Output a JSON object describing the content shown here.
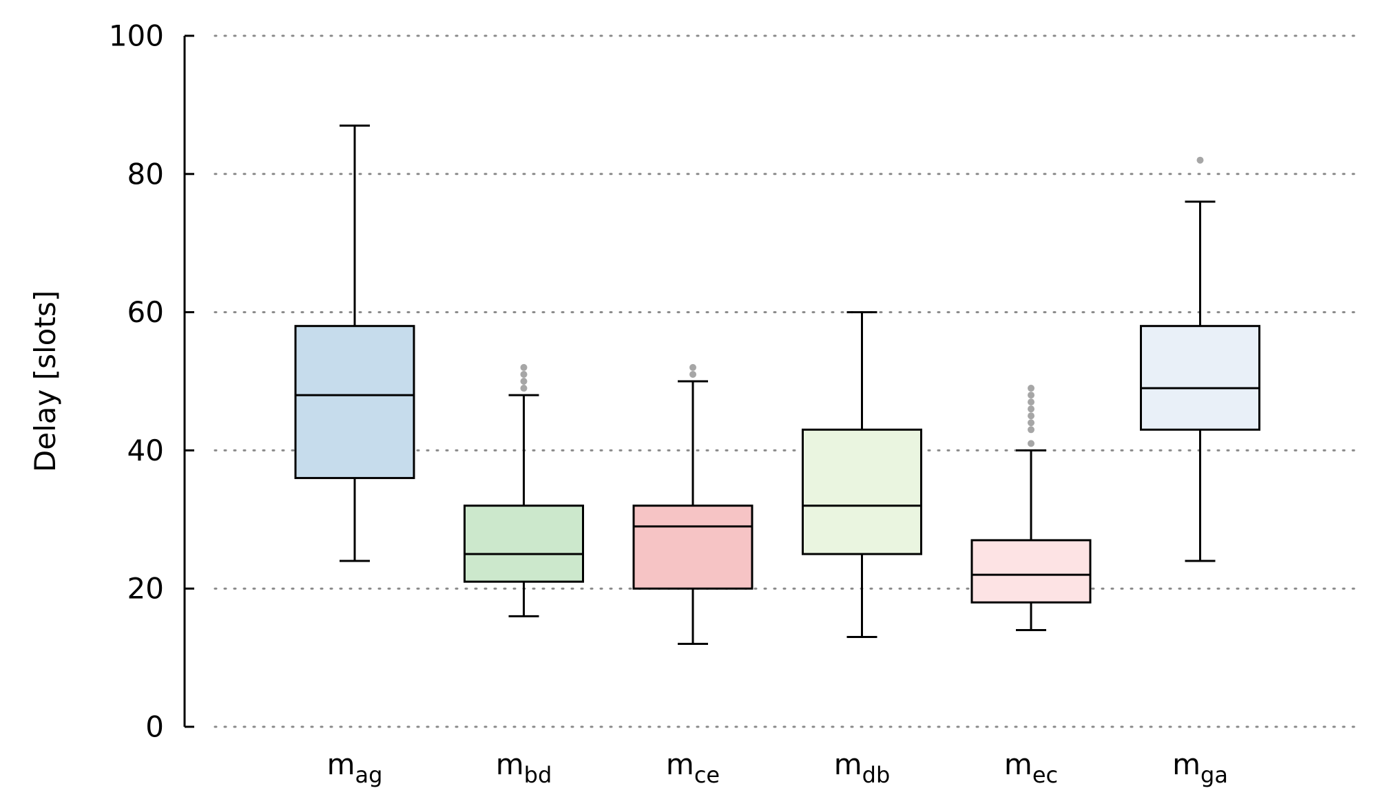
{
  "chart_data": {
    "type": "boxplot",
    "title": "",
    "xlabel": "",
    "ylabel": "Delay [slots]",
    "ylim": [
      0,
      100
    ],
    "yticks": [
      0,
      20,
      40,
      60,
      80,
      100
    ],
    "grid": true,
    "categories": [
      {
        "main": "m",
        "sub": "ag"
      },
      {
        "main": "m",
        "sub": "bd"
      },
      {
        "main": "m",
        "sub": "ce"
      },
      {
        "main": "m",
        "sub": "db"
      },
      {
        "main": "m",
        "sub": "ec"
      },
      {
        "main": "m",
        "sub": "ga"
      }
    ],
    "boxes": [
      {
        "name": "m_ag",
        "whisker_low": 24,
        "q1": 36,
        "median": 48,
        "q3": 58,
        "whisker_high": 87,
        "outliers": [],
        "color": "#c6dcec"
      },
      {
        "name": "m_bd",
        "whisker_low": 16,
        "q1": 21,
        "median": 25,
        "q3": 32,
        "whisker_high": 48,
        "outliers": [
          49,
          50,
          51,
          52
        ],
        "color": "#cce8cc"
      },
      {
        "name": "m_ce",
        "whisker_low": 12,
        "q1": 20,
        "median": 29,
        "q3": 32,
        "whisker_high": 50,
        "outliers": [
          51,
          52
        ],
        "color": "#f6c4c5"
      },
      {
        "name": "m_db",
        "whisker_low": 13,
        "q1": 25,
        "median": 32,
        "q3": 43,
        "whisker_high": 60,
        "outliers": [],
        "color": "#eaf5e0"
      },
      {
        "name": "m_ec",
        "whisker_low": 14,
        "q1": 18,
        "median": 22,
        "q3": 27,
        "whisker_high": 40,
        "outliers": [
          41,
          43,
          44,
          45,
          46,
          47,
          48,
          49
        ],
        "color": "#fde3e4"
      },
      {
        "name": "m_ga",
        "whisker_low": 24,
        "q1": 43,
        "median": 49,
        "q3": 58,
        "whisker_high": 76,
        "outliers": [
          82
        ],
        "color": "#e9f0f8"
      }
    ]
  }
}
